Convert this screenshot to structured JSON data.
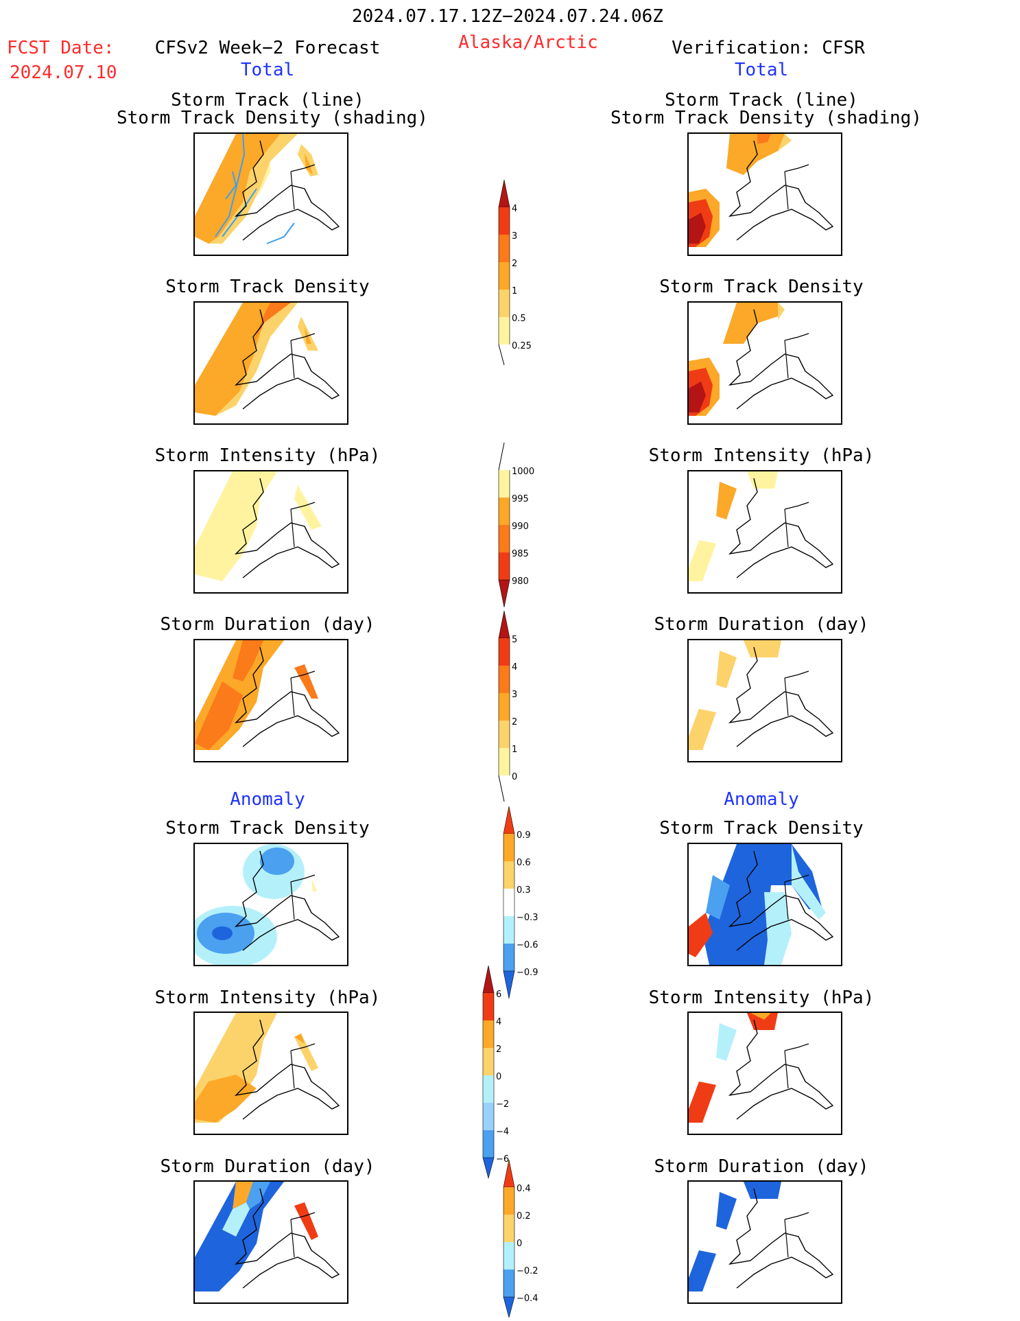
{
  "header": {
    "valid_period": "2024.07.17.12Z−2024.07.24.06Z",
    "fcst_date_label": "FCST Date:",
    "fcst_date_value": "2024.07.10",
    "forecast_title": "CFSv2 Week−2 Forecast",
    "region": "Alaska/Arctic",
    "verification_title": "Verification: CFSR",
    "total_left": "Total",
    "total_right": "Total"
  },
  "sections": {
    "anomaly_left": "Anomaly",
    "anomaly_right": "Anomaly"
  },
  "panel_titles": {
    "track_line": "Storm Track (line)",
    "track_shading": "Storm Track Density (shading)",
    "track_density": "Storm Track Density",
    "intensity": "Storm Intensity (hPa)",
    "duration": "Storm Duration (day)"
  },
  "colorbars": {
    "track_density_total": [
      "4",
      "3",
      "2",
      "1",
      "0.5",
      "0.25"
    ],
    "intensity_total": [
      "1000",
      "995",
      "990",
      "985",
      "980"
    ],
    "duration_total": [
      "5",
      "4",
      "3",
      "2",
      "1",
      "0"
    ],
    "density_anomaly": [
      "0.9",
      "0.6",
      "0.3",
      "−0.3",
      "−0.6",
      "−0.9"
    ],
    "intensity_anomaly": [
      "6",
      "4",
      "2",
      "0",
      "−2",
      "−4",
      "−6"
    ],
    "duration_anomaly": [
      "0.4",
      "0.2",
      "0",
      "−0.2",
      "−0.4"
    ]
  },
  "colors": {
    "warm": [
      "#fff3a0",
      "#fcd26a",
      "#fca828",
      "#fb7a1a",
      "#f03c14",
      "#b41414"
    ],
    "cool": [
      "#b4f0fa",
      "#96d2fa",
      "#4ba0f0",
      "#1e64dc"
    ],
    "track_line": "#3aa0f0"
  }
}
